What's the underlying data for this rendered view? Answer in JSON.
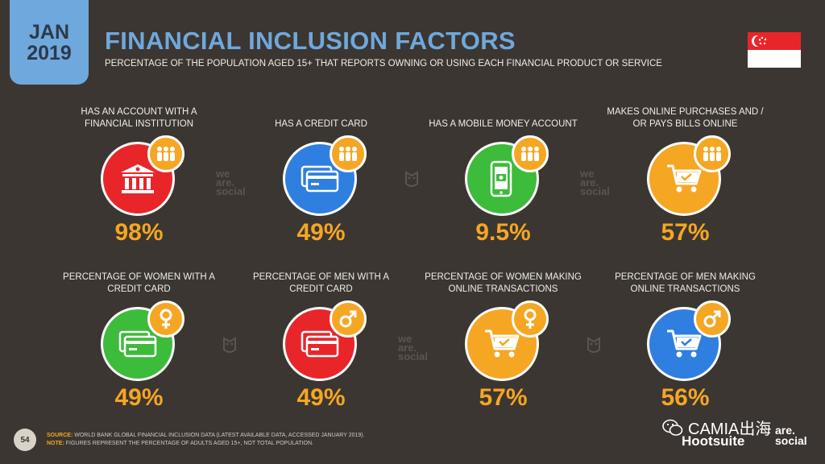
{
  "badge": {
    "month": "JAN",
    "year": "2019"
  },
  "title": "FINANCIAL INCLUSION FACTORS",
  "subtitle": "PERCENTAGE OF THE POPULATION AGED 15+ THAT REPORTS OWNING OR USING EACH FINANCIAL PRODUCT OR SERVICE",
  "flag": "singapore-flag",
  "stats": [
    {
      "label": "HAS AN ACCOUNT WITH A FINANCIAL INSTITUTION",
      "value": "98%",
      "icon": "bank-icon",
      "badge_icon": "people-icon",
      "color": "#e8262a"
    },
    {
      "label": "HAS A CREDIT CARD",
      "value": "49%",
      "icon": "credit-card-icon",
      "badge_icon": "people-icon",
      "color": "#2f7fe0"
    },
    {
      "label": "HAS A MOBILE MONEY ACCOUNT",
      "value": "9.5%",
      "icon": "mobile-money-icon",
      "badge_icon": "people-icon",
      "color": "#3dbb3b"
    },
    {
      "label": "MAKES ONLINE PURCHASES AND / OR PAYS BILLS ONLINE",
      "value": "57%",
      "icon": "shopping-cart-icon",
      "badge_icon": "people-icon",
      "color": "#f5a623"
    },
    {
      "label": "PERCENTAGE OF WOMEN WITH A CREDIT CARD",
      "value": "49%",
      "icon": "credit-card-icon",
      "badge_icon": "female-icon",
      "color": "#3dbb3b"
    },
    {
      "label": "PERCENTAGE OF MEN WITH A CREDIT CARD",
      "value": "49%",
      "icon": "credit-card-icon",
      "badge_icon": "male-icon",
      "color": "#e8262a"
    },
    {
      "label": "PERCENTAGE OF WOMEN MAKING ONLINE TRANSACTIONS",
      "value": "57%",
      "icon": "shopping-cart-icon",
      "badge_icon": "female-icon",
      "color": "#f5a623"
    },
    {
      "label": "PERCENTAGE OF MEN MAKING ONLINE TRANSACTIONS",
      "value": "56%",
      "icon": "shopping-cart-icon",
      "badge_icon": "male-icon",
      "color": "#2f7fe0"
    }
  ],
  "watermark": {
    "we": "we",
    "are": "are.",
    "social": "social"
  },
  "footer": {
    "page_number": "54",
    "source_label": "SOURCE:",
    "source_text": " WORLD BANK GLOBAL FINANCIAL INCLUSION DATA (LATEST AVAILABLE DATA, ACCESSED JANUARY 2019).",
    "note_label": "NOTE:",
    "note_text": " FIGURES REPRESENT THE PERCENTAGE OF ADULTS AGED 15+, NOT TOTAL POPULATION.",
    "wechat_text": "CAMIA出海",
    "hootsuite": "Hootsuite",
    "are": "are.",
    "social": "social"
  }
}
